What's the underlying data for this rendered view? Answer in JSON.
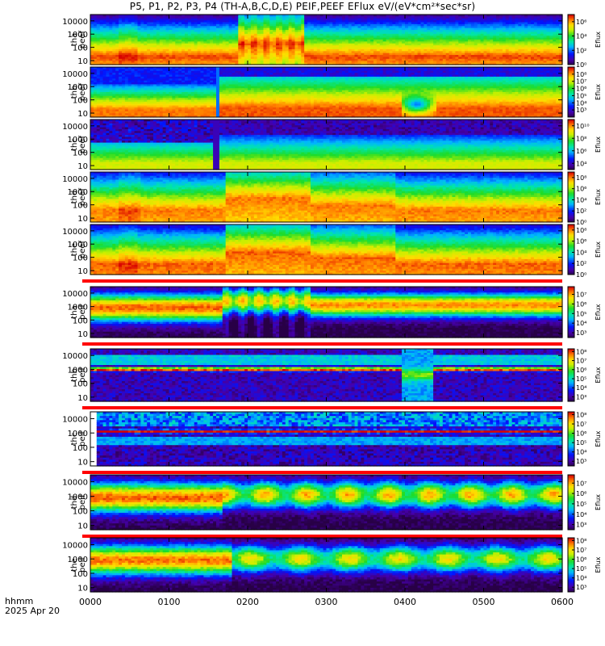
{
  "title": "P5, P1, P2, P3, P4 (TH-A,B,C,D,E) PEIF,PEEF EFlux eV/(eV*cm²*sec*sr)",
  "colorbar_label": "Eflux",
  "footer": {
    "line1": "hhmm",
    "line2": "2025 Apr 20"
  },
  "chart_data": {
    "type": "heatmap",
    "title": "P5, P1, P2, P3, P4 (TH-A,B,C,D,E) PEIF,PEEF EFlux eV/(eV*cm²*sec*sr)",
    "x_ticks": [
      "0000",
      "0100",
      "0200",
      "0300",
      "0400",
      "0500",
      "0600"
    ],
    "x_range_hours": [
      0,
      6
    ],
    "y_scale": "log",
    "y_ticks": [
      10,
      100,
      1000,
      10000
    ],
    "y_tick_labels": [
      "10",
      "100",
      "1000",
      "10000"
    ],
    "colormap": "rainbow",
    "panels": [
      {
        "label": [
          "tha",
          "peef"
        ],
        "ylim": [
          5,
          30000
        ],
        "cbar_ticks": [
          "10⁰",
          "10²",
          "10⁴",
          "10⁶"
        ],
        "cbar_pow": [
          0,
          2,
          4,
          6
        ],
        "cbar_range": [
          0,
          7
        ],
        "red_bar_after": false,
        "kind": "electron_a"
      },
      {
        "label": [
          "thb",
          "peef"
        ],
        "ylim": [
          5,
          30000
        ],
        "cbar_ticks": [
          "10³",
          "10⁴",
          "10⁵",
          "10⁶",
          "10⁷",
          "10⁸"
        ],
        "cbar_pow": [
          3,
          4,
          5,
          6,
          7,
          8
        ],
        "cbar_range": [
          2,
          9
        ],
        "red_bar_after": false,
        "kind": "electron_b"
      },
      {
        "label": [
          "thc",
          "peef"
        ],
        "ylim": [
          5,
          30000
        ],
        "cbar_ticks": [
          "10⁴",
          "10⁶",
          "10⁸",
          "10¹⁰"
        ],
        "cbar_pow": [
          4,
          6,
          8,
          10
        ],
        "cbar_range": [
          3,
          11
        ],
        "red_bar_after": false,
        "kind": "electron_c"
      },
      {
        "label": [
          "thd",
          "peef"
        ],
        "ylim": [
          5,
          30000
        ],
        "cbar_ticks": [
          "10⁰",
          "10²",
          "10⁴",
          "10⁶",
          "10⁸"
        ],
        "cbar_pow": [
          0,
          2,
          4,
          6,
          8
        ],
        "cbar_range": [
          0,
          9
        ],
        "red_bar_after": false,
        "kind": "electron_d"
      },
      {
        "label": [
          "the",
          "peef"
        ],
        "ylim": [
          5,
          30000
        ],
        "cbar_ticks": [
          "10⁰",
          "10²",
          "10⁴",
          "10⁶",
          "10⁸"
        ],
        "cbar_pow": [
          0,
          2,
          4,
          6,
          8
        ],
        "cbar_range": [
          0,
          9
        ],
        "red_bar_after": true,
        "kind": "electron_e"
      },
      {
        "label": [
          "tha",
          "peif"
        ],
        "ylim": [
          5,
          30000
        ],
        "cbar_ticks": [
          "10³",
          "10⁴",
          "10⁵",
          "10⁶",
          "10⁷"
        ],
        "cbar_pow": [
          3,
          4,
          5,
          6,
          7
        ],
        "cbar_range": [
          2.5,
          7.8
        ],
        "red_bar_after": true,
        "kind": "ion_a"
      },
      {
        "label": [
          "thb",
          "peif"
        ],
        "ylim": [
          5,
          30000
        ],
        "cbar_ticks": [
          "10³",
          "10⁴",
          "10⁵",
          "10⁶",
          "10⁷",
          "10⁸"
        ],
        "cbar_pow": [
          3,
          4,
          5,
          6,
          7,
          8
        ],
        "cbar_range": [
          2.5,
          8.3
        ],
        "red_bar_after": true,
        "kind": "ion_b"
      },
      {
        "label": [
          "thc",
          "peif"
        ],
        "ylim": [
          5,
          30000
        ],
        "cbar_ticks": [
          "10³",
          "10⁴",
          "10⁵",
          "10⁶",
          "10⁷",
          "10⁸"
        ],
        "cbar_pow": [
          3,
          4,
          5,
          6,
          7,
          8
        ],
        "cbar_range": [
          2.5,
          8.3
        ],
        "red_bar_after": true,
        "kind": "ion_c"
      },
      {
        "label": [
          "thd",
          "peif"
        ],
        "ylim": [
          5,
          30000
        ],
        "cbar_ticks": [
          "10³",
          "10⁴",
          "10⁵",
          "10⁶",
          "10⁷"
        ],
        "cbar_pow": [
          3,
          4,
          5,
          6,
          7
        ],
        "cbar_range": [
          2.5,
          7.8
        ],
        "red_bar_after": true,
        "kind": "ion_d"
      },
      {
        "label": [
          "the",
          "peif"
        ],
        "ylim": [
          5,
          30000
        ],
        "cbar_ticks": [
          "10³",
          "10⁴",
          "10⁵",
          "10⁶",
          "10⁷",
          "10⁸"
        ],
        "cbar_pow": [
          3,
          4,
          5,
          6,
          7,
          8
        ],
        "cbar_range": [
          2.5,
          8.3
        ],
        "red_bar_after": false,
        "kind": "ion_e"
      }
    ]
  }
}
